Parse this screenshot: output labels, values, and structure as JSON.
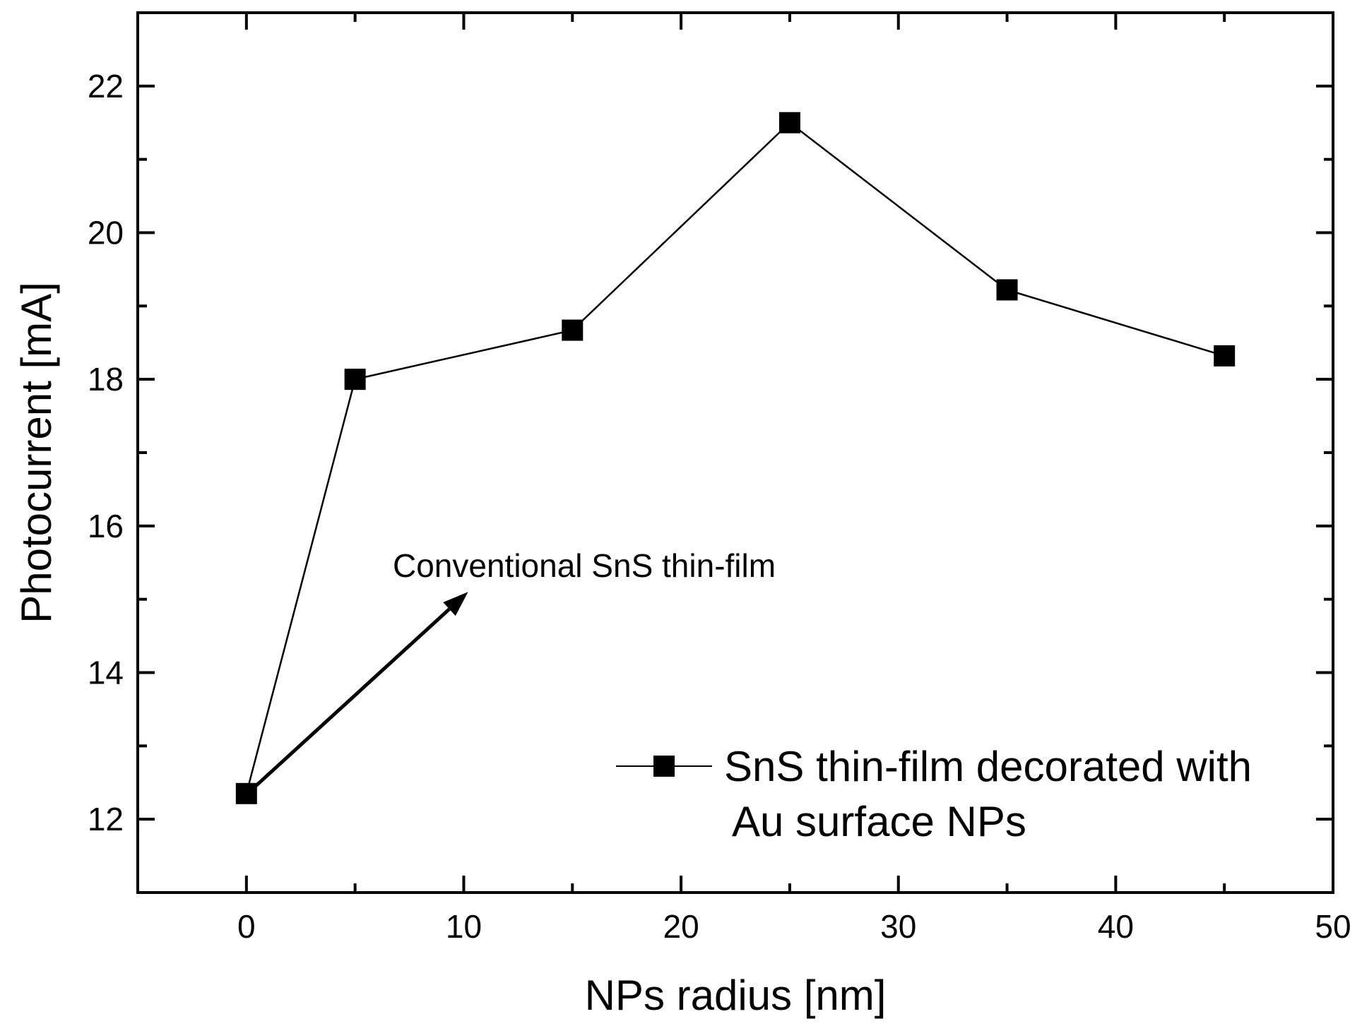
{
  "chart_data": {
    "type": "line",
    "title": "",
    "xlabel": "NPs radius [nm]",
    "ylabel": "Photocurrent [mA]",
    "xlim": [
      -5,
      50
    ],
    "ylim": [
      11,
      23
    ],
    "x_ticks": [
      0,
      10,
      20,
      30,
      40,
      50
    ],
    "y_ticks": [
      12,
      14,
      16,
      18,
      20,
      22
    ],
    "x_tick_labels": [
      "0",
      "10",
      "20",
      "30",
      "40",
      "50"
    ],
    "y_tick_labels": [
      "12",
      "14",
      "16",
      "18",
      "20",
      "22"
    ],
    "grid": false,
    "series": [
      {
        "name": "SnS thin-film decorated with Au surface NPs",
        "marker": "square",
        "color": "#000000",
        "x": [
          0,
          5,
          15,
          25,
          35,
          45
        ],
        "y": [
          12.35,
          18.0,
          18.67,
          21.5,
          19.22,
          18.32
        ]
      }
    ],
    "legend": {
      "position": "bottom-right",
      "line1": "SnS thin-film decorated with",
      "line2": "Au surface NPs"
    },
    "annotation": {
      "text": "Conventional SnS thin-film",
      "color": "#0000ff",
      "arrow_from": [
        0,
        12.35
      ],
      "arrow_to": [
        10.2,
        15.1
      ]
    }
  }
}
